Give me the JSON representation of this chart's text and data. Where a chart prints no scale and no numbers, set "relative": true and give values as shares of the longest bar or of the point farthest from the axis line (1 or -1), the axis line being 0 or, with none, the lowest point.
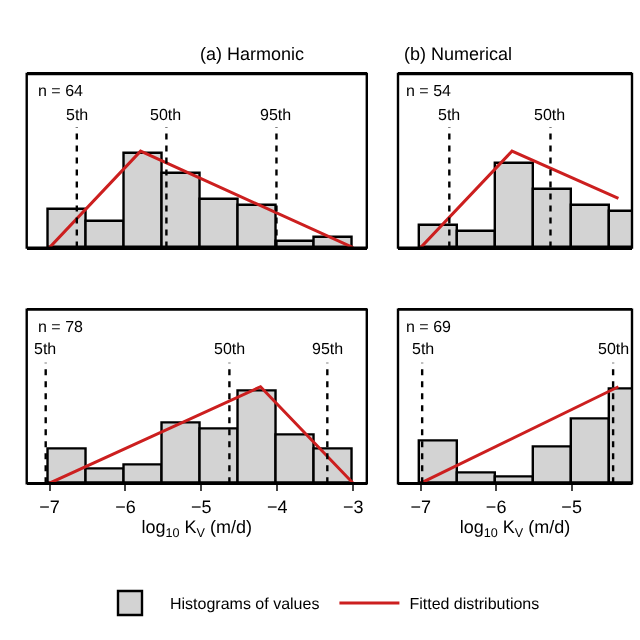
{
  "chart_data": [
    {
      "type": "histogram",
      "title": "(a) Harmonic",
      "relative": true,
      "xlim": [
        -7.3,
        -2.82
      ],
      "xticks": [
        -7,
        -6,
        -5,
        -4,
        -3
      ],
      "tick_labels": false,
      "legend": "bottom",
      "annotations": [
        "n = 64"
      ],
      "series": [
        {
          "name": "Histograms of values",
          "color": "#d3d3d3",
          "bins": [
            -7,
            -6.5,
            -6,
            -5.5,
            -5,
            -4.5,
            -4,
            -3.5,
            -3
          ],
          "values": [
            0.38,
            0.27,
            0.98,
            0.76,
            0.49,
            0.43,
            0.06,
            0.11
          ]
        },
        {
          "type": "line",
          "name": "Fitted distributions",
          "color": "#cc1f1f",
          "x": [
            -7,
            -5.8,
            -3
          ],
          "values": [
            0,
            1,
            0
          ]
        }
      ],
      "ref_lines": [
        {
          "axis": "x",
          "value": -6.64,
          "label": "5th",
          "line_style": "dotted",
          "color": "#000000"
        },
        {
          "axis": "x",
          "value": -5.46,
          "label": "50th",
          "line_style": "dotted",
          "color": "#000000"
        },
        {
          "axis": "x",
          "value": -4.01,
          "label": "95th",
          "line_style": "dotted",
          "color": "#000000"
        }
      ]
    },
    {
      "type": "histogram",
      "title": "(b) Numerical",
      "relative": true,
      "xlim": [
        -7.3,
        -4.2
      ],
      "xticks": [
        -7,
        -6,
        -5
      ],
      "tick_labels": false,
      "annotations": [
        "n = 54"
      ],
      "series": [
        {
          "color": "#d3d3d3",
          "bins": [
            -7,
            -6.5,
            -6,
            -5.5,
            -5,
            -4.5,
            -4
          ],
          "values": [
            0.22,
            0.16,
            0.87,
            0.59,
            0.43,
            0.37
          ]
        },
        {
          "type": "line",
          "color": "#cc1f1f",
          "x": [
            -7,
            -5.79,
            -4.38
          ],
          "values": [
            0,
            1,
            0.51
          ]
        }
      ],
      "ref_lines": [
        {
          "axis": "x",
          "value": -6.62,
          "label": "5th",
          "line_style": "dotted",
          "color": "#000000"
        },
        {
          "axis": "x",
          "value": -5.28,
          "label": "50th",
          "line_style": "dotted",
          "color": "#000000"
        }
      ]
    },
    {
      "type": "histogram",
      "relative": true,
      "xlim": [
        -7.3,
        -2.82
      ],
      "xticks": [
        -7,
        -6,
        -5,
        -4,
        -3
      ],
      "tick_labels": "x",
      "xlabel": "log$_{10}$ K$_{V}$ (m/d)",
      "annotations": [
        "n = 78"
      ],
      "series": [
        {
          "color": "#d3d3d3",
          "bins": [
            -7,
            -6.5,
            -6,
            -5.5,
            -5,
            -4.5,
            -4,
            -3.5,
            -3
          ],
          "values": [
            0.35,
            0.14,
            0.19,
            0.61,
            0.55,
            0.96,
            0.5,
            0.35
          ]
        },
        {
          "type": "line",
          "color": "#cc1f1f",
          "x": [
            -7,
            -4.22,
            -3
          ],
          "values": [
            0,
            1,
            0
          ]
        }
      ],
      "ref_lines": [
        {
          "axis": "x",
          "value": -7.05,
          "label": "5th",
          "line_style": "dotted",
          "color": "#000000"
        },
        {
          "axis": "x",
          "value": -4.63,
          "label": "50th",
          "line_style": "dotted",
          "color": "#000000"
        },
        {
          "axis": "x",
          "value": -3.34,
          "label": "95th",
          "line_style": "dotted",
          "color": "#000000"
        }
      ]
    },
    {
      "type": "histogram",
      "relative": true,
      "xlim": [
        -7.3,
        -4.2
      ],
      "xticks": [
        -7,
        -6,
        -5
      ],
      "tick_labels": "x",
      "xlabel": "log$_{10}$ K$_{V}$ (m/d)",
      "annotations": [
        "n = 69"
      ],
      "series": [
        {
          "color": "#d3d3d3",
          "bins": [
            -7,
            -6.5,
            -6,
            -5.5,
            -5,
            -4.5,
            -4
          ],
          "values": [
            0.43,
            0.1,
            0.06,
            0.37,
            0.66,
            0.98
          ]
        },
        {
          "type": "line",
          "color": "#cc1f1f",
          "x": [
            -7,
            -4.38
          ],
          "values": [
            0,
            1
          ]
        }
      ],
      "ref_lines": [
        {
          "axis": "x",
          "value": -6.98,
          "label": "5th",
          "line_style": "dotted",
          "color": "#000000"
        },
        {
          "axis": "x",
          "value": -4.45,
          "label": "50th",
          "line_style": "dotted",
          "color": "#000000"
        }
      ]
    }
  ]
}
